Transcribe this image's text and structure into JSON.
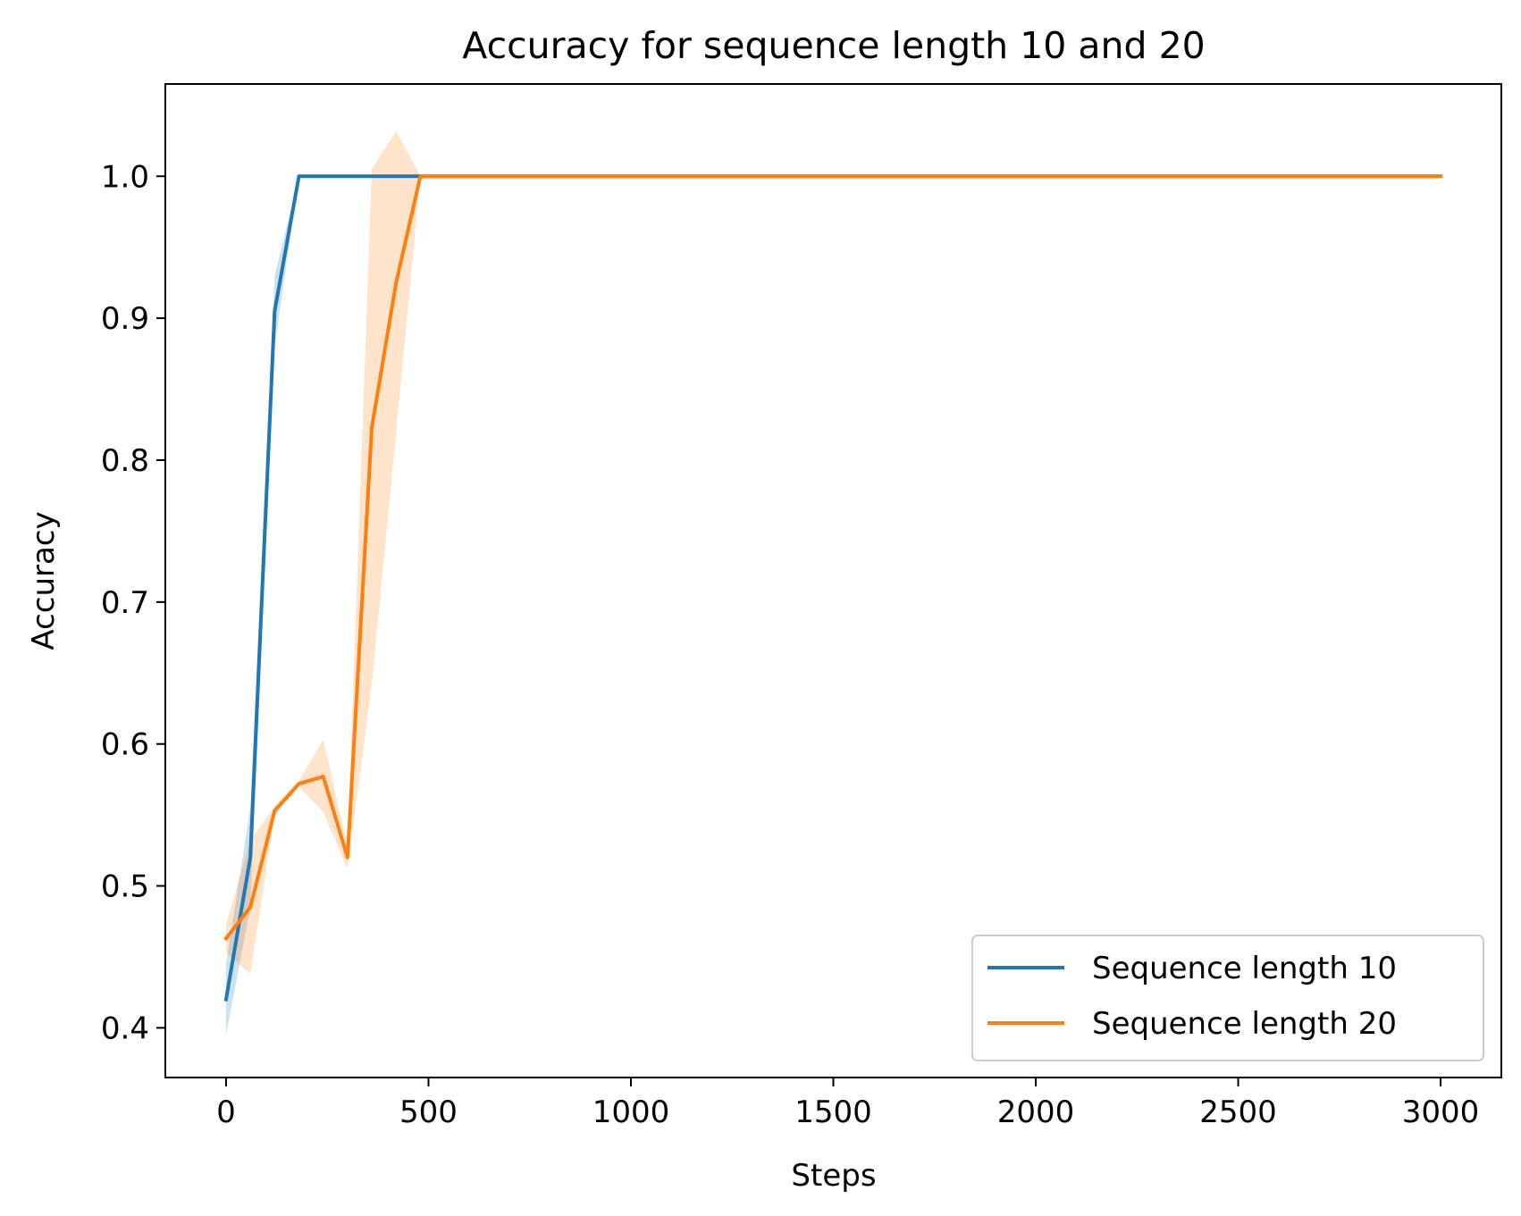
{
  "chart_data": {
    "type": "line",
    "title": "Accuracy for sequence length 10 and 20",
    "xlabel": "Steps",
    "ylabel": "Accuracy",
    "xlim": [
      -150,
      3150
    ],
    "ylim": [
      0.365,
      1.065
    ],
    "xticks": [
      0,
      500,
      1000,
      1500,
      2000,
      2500,
      3000
    ],
    "xtick_labels": [
      "0",
      "500",
      "1000",
      "1500",
      "2000",
      "2500",
      "3000"
    ],
    "yticks": [
      0.4,
      0.5,
      0.6,
      0.7,
      0.8,
      0.9,
      1.0
    ],
    "ytick_labels": [
      "0.4",
      "0.5",
      "0.6",
      "0.7",
      "0.8",
      "0.9",
      "1.0"
    ],
    "grid": false,
    "legend_position": "lower right",
    "series": [
      {
        "name": "Sequence length 10",
        "color": "#1f77b4",
        "x": [
          0,
          60,
          120,
          180,
          240,
          300,
          360,
          420,
          480,
          3000
        ],
        "y": [
          0.42,
          0.52,
          0.905,
          1.0,
          1.0,
          1.0,
          1.0,
          1.0,
          1.0,
          1.0
        ],
        "y_lower": [
          0.395,
          0.485,
          0.88,
          1.0,
          1.0,
          1.0,
          1.0,
          1.0,
          1.0,
          1.0
        ],
        "y_upper": [
          0.445,
          0.555,
          0.93,
          1.0,
          1.0,
          1.0,
          1.0,
          1.0,
          1.0,
          1.0
        ]
      },
      {
        "name": "Sequence length 20",
        "color": "#ff7f0e",
        "x": [
          0,
          60,
          120,
          180,
          240,
          300,
          360,
          420,
          480,
          3000
        ],
        "y": [
          0.463,
          0.485,
          0.553,
          0.572,
          0.577,
          0.52,
          0.823,
          0.925,
          1.0,
          1.0
        ],
        "y_lower": [
          0.453,
          0.438,
          0.55,
          0.57,
          0.552,
          0.512,
          0.642,
          0.82,
          1.0,
          1.0
        ],
        "y_upper": [
          0.473,
          0.532,
          0.556,
          0.574,
          0.603,
          0.528,
          1.005,
          1.032,
          1.0,
          1.0
        ]
      }
    ]
  }
}
